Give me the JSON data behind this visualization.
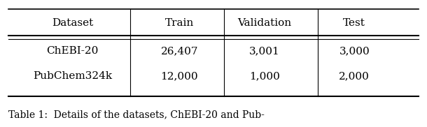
{
  "headers": [
    "Dataset",
    "Train",
    "Validation",
    "Test"
  ],
  "rows": [
    [
      "ChEBI-20",
      "26,407",
      "3,001",
      "3,000"
    ],
    [
      "PubChem324k",
      "12,000",
      "1,000",
      "2,000"
    ]
  ],
  "caption": "Table 1:  Details of the datasets, ChEBI-20 and Pub-",
  "background_color": "#ffffff",
  "text_color": "#000000",
  "font_size": 11,
  "caption_font_size": 10
}
